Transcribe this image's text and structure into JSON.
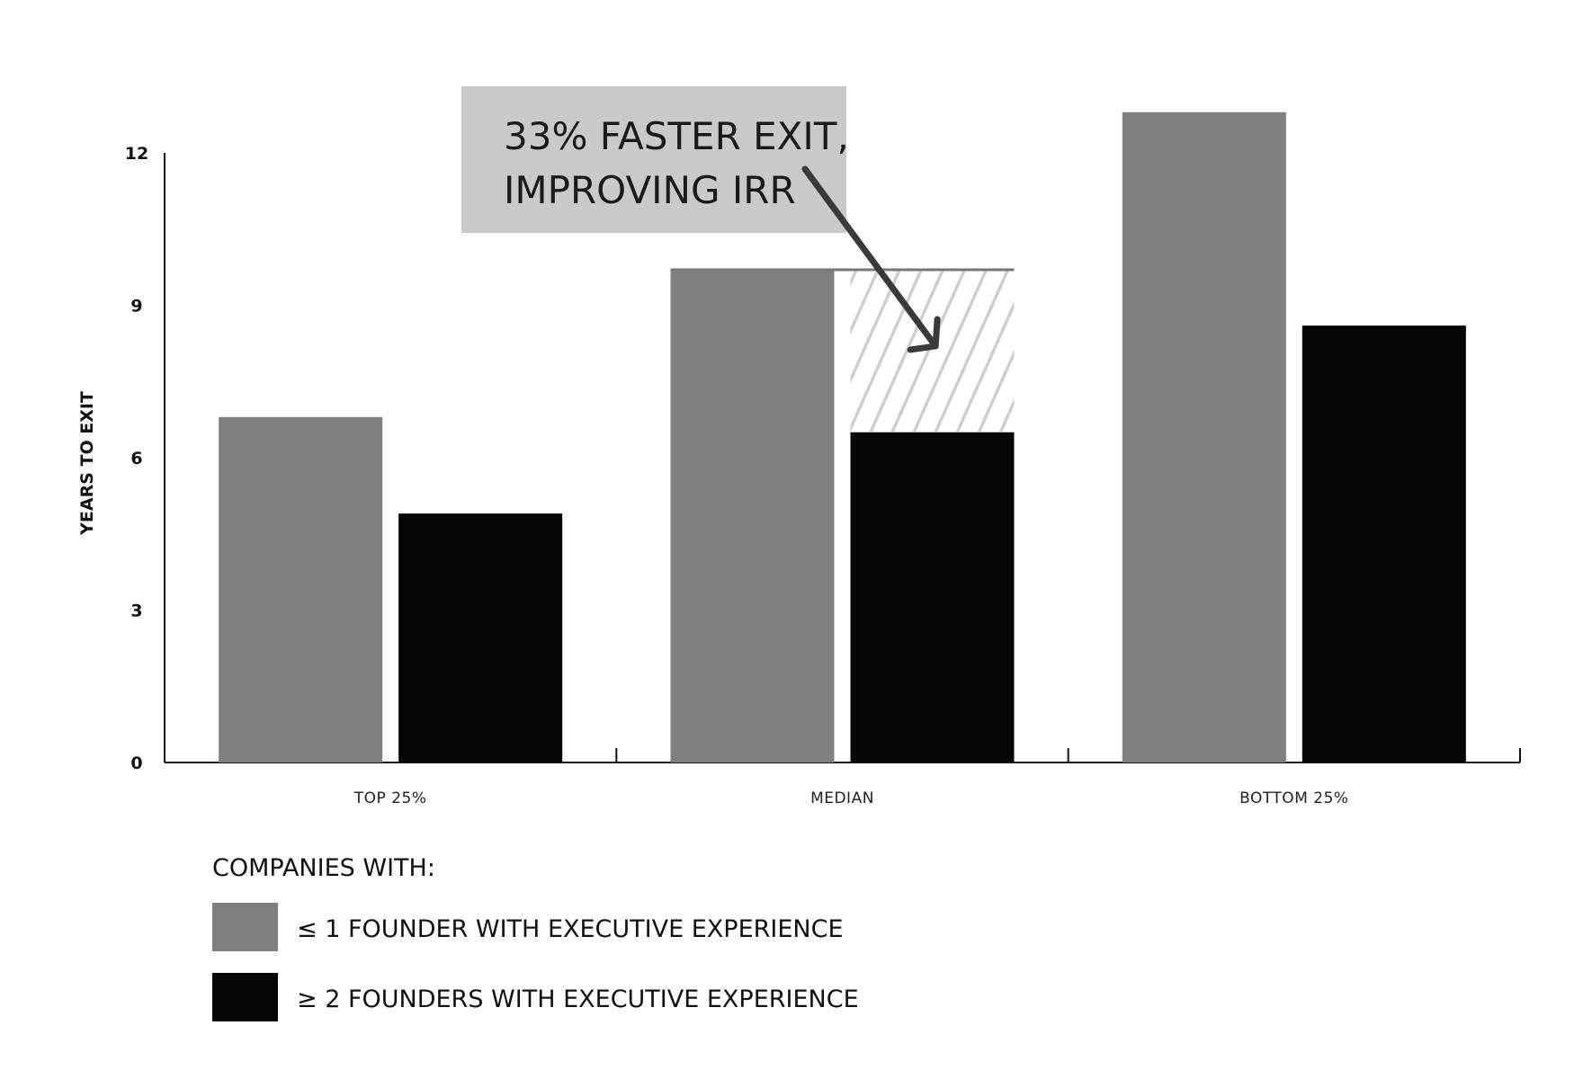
{
  "chart_data": {
    "type": "bar",
    "categories": [
      "TOP 25%",
      "MEDIAN",
      "BOTTOM 25%"
    ],
    "series": [
      {
        "name": "≤ 1 FOUNDER WITH EXECUTIVE EXPERIENCE",
        "values": [
          6.8,
          9.7,
          12.8
        ]
      },
      {
        "name": "≥ 2 FOUNDERS WITH EXECUTIVE EXPERIENCE",
        "values": [
          4.9,
          6.5,
          8.6
        ]
      }
    ],
    "ylabel": "YEARS TO EXIT",
    "xlabel": "",
    "ylim": [
      0,
      12
    ],
    "yticks": [
      0,
      3,
      6,
      9,
      12
    ],
    "legend_title": "COMPANIES WITH:",
    "legend_position": "bottom-left",
    "grid": false,
    "annotation": {
      "lines": [
        "33% FASTER EXIT,",
        "IMPROVING IRR"
      ],
      "category": "MEDIAN"
    },
    "colors": {
      "series_1": "#808080",
      "series_2": "#050505",
      "callout_bg": "#c9c9c9",
      "hatch": "#cfcfcf",
      "arrow": "#3a3a3a"
    }
  }
}
